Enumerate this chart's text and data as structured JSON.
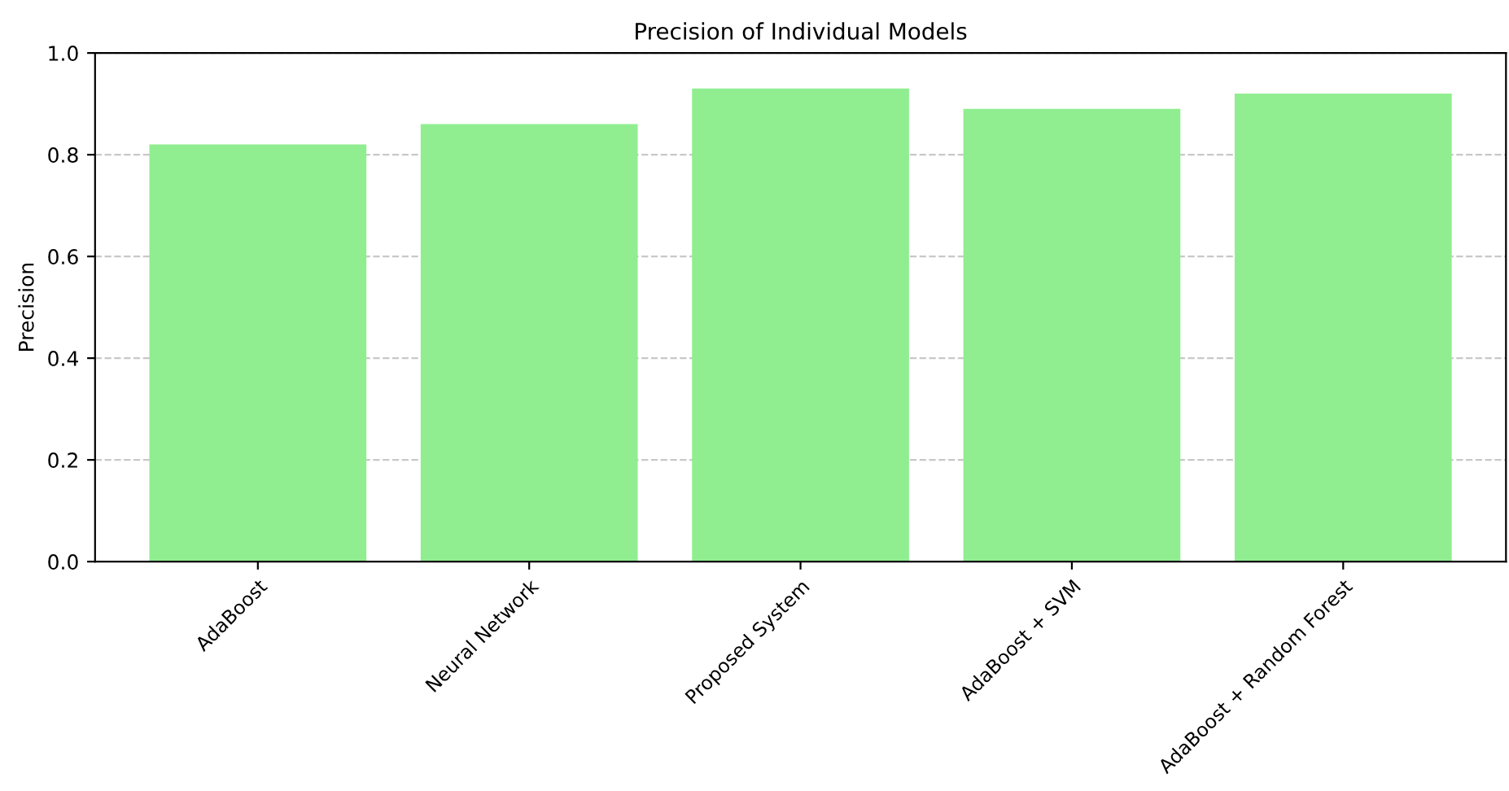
{
  "chart_data": {
    "type": "bar",
    "title": "Precision of Individual Models",
    "ylabel": "Precision",
    "categories": [
      "AdaBoost",
      "Neural Network",
      "Proposed System",
      "AdaBoost + SVM",
      "AdaBoost + Random Forest"
    ],
    "values": [
      0.82,
      0.86,
      0.93,
      0.89,
      0.92
    ],
    "color": "#90ee90",
    "ylim": [
      0,
      1.0
    ],
    "yticks": [
      {
        "value": 0,
        "label": "0.0"
      },
      0.2,
      0.4,
      0.6,
      0.8,
      {
        "value": 1,
        "label": "1.0"
      }
    ],
    "grid": "y"
  }
}
